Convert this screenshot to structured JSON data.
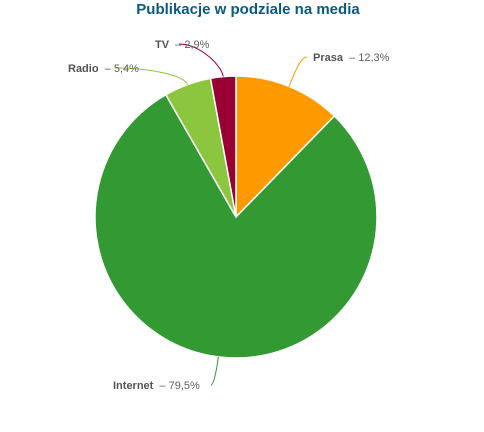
{
  "chart_data": {
    "type": "pie",
    "title": "Publikacje w podziale na media",
    "slices": [
      {
        "name": "Prasa",
        "value": 12.3,
        "value_label": "12,3%",
        "color": "#ff9900"
      },
      {
        "name": "Internet",
        "value": 79.5,
        "value_label": "79,5%",
        "color": "#339933"
      },
      {
        "name": "Radio",
        "value": 5.4,
        "value_label": "5,4%",
        "color": "#8cc63e"
      },
      {
        "name": "TV",
        "value": 2.9,
        "value_label": "2,9%",
        "color": "#990033"
      }
    ],
    "separator": "–",
    "legend": false
  },
  "colors": {
    "title": "#0b5a82",
    "slice_border": "#ffffff"
  }
}
